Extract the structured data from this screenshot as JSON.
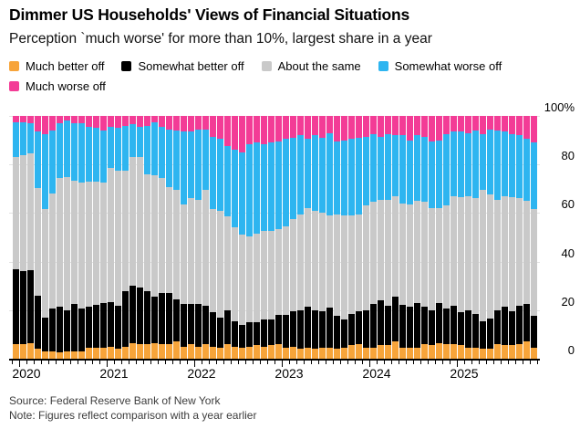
{
  "title": "Dimmer US Households' Views of Financial Situations",
  "subtitle": "Perception `much worse' for more than 10%, largest share in a year",
  "source_line": "Source: Federal Reserve Bank of New York",
  "note_line": "Note: Figures reflect comparison with a year earlier",
  "colors": {
    "background": "#ffffff",
    "gridline": "#e3e3e3",
    "axis": "#000000",
    "much_better": "#f7a43a",
    "somewhat_better": "#000000",
    "about_same": "#c9c9c9",
    "somewhat_worse": "#2eb5f0",
    "much_worse": "#f33c96"
  },
  "chart_data": {
    "type": "bar",
    "stacked": true,
    "unit": "percent",
    "ylim": [
      0,
      100
    ],
    "grid": "horizontal",
    "legend_position": "top",
    "bar_count": 72,
    "frequency": "monthly",
    "y_ticks": [
      {
        "label": "100%",
        "value": 100
      },
      {
        "label": "80",
        "value": 80
      },
      {
        "label": "60",
        "value": 60
      },
      {
        "label": "40",
        "value": 40
      },
      {
        "label": "20",
        "value": 20
      },
      {
        "label": "0",
        "value": 0
      }
    ],
    "x_tick_labels": [
      "2020",
      "2021",
      "2022",
      "2023",
      "2024",
      "2025"
    ],
    "year_start_indices": [
      1,
      13,
      25,
      37,
      49,
      61
    ],
    "series": [
      {
        "name": "Much better off",
        "color": "#f7a43a",
        "values": [
          6,
          6,
          6.5,
          4,
          3,
          3,
          2.5,
          3,
          3,
          3,
          4.5,
          4.5,
          4.5,
          5,
          4,
          5,
          6.5,
          6,
          6,
          6.5,
          6,
          6,
          7,
          5,
          6,
          5,
          6,
          5,
          4.5,
          6,
          5,
          4.5,
          5,
          5.5,
          5,
          5.5,
          6,
          4.5,
          5,
          4,
          4.5,
          4,
          4.5,
          4.5,
          4,
          4.5,
          5.5,
          6,
          4.5,
          4.5,
          5.5,
          5.5,
          7,
          4.5,
          4.5,
          4.5,
          6,
          5.5,
          6.5,
          6,
          6,
          5.5,
          4.5,
          4.5,
          4,
          4,
          6,
          5.5,
          5.5,
          6,
          7,
          4.5
        ]
      },
      {
        "name": "Somewhat better off",
        "color": "#000000",
        "values": [
          31,
          30,
          30,
          22,
          14,
          17.5,
          19,
          17,
          19.5,
          17.5,
          17,
          17.5,
          18.5,
          18.5,
          18,
          23,
          23.5,
          23.5,
          22,
          19,
          21,
          21,
          17.5,
          17.5,
          16.5,
          17.5,
          16,
          14,
          12.5,
          14,
          10.5,
          9.5,
          10,
          9.5,
          11,
          10.5,
          12,
          13.5,
          14.5,
          16,
          17,
          16,
          15,
          16.5,
          13.5,
          11.5,
          13,
          13.5,
          15.5,
          18,
          18.5,
          16.5,
          18.5,
          17.5,
          17,
          18.5,
          15.5,
          14.5,
          16.5,
          14.5,
          16,
          13.5,
          15.5,
          14,
          11.5,
          12.5,
          14,
          16,
          14,
          16,
          15.5,
          13
        ]
      },
      {
        "name": "About the same",
        "color": "#c9c9c9",
        "values": [
          46,
          48,
          48,
          44.5,
          44.5,
          47.5,
          53,
          55,
          51,
          52,
          51.5,
          51,
          49.5,
          55,
          55.5,
          49.5,
          53,
          53.5,
          48,
          50,
          47.5,
          43.5,
          45,
          41,
          43.5,
          43,
          47.5,
          42.5,
          44,
          38.5,
          38.5,
          37,
          35.5,
          36.5,
          36.5,
          36.5,
          35.5,
          36.5,
          38,
          39.5,
          40.5,
          41,
          40.5,
          38,
          42,
          43,
          40.5,
          40,
          43,
          42,
          41.5,
          43.5,
          41.5,
          42,
          42,
          42,
          43,
          42,
          39,
          42.5,
          45,
          47.5,
          47,
          47.5,
          54,
          51,
          45.5,
          45.5,
          47,
          44,
          42.5,
          44
        ]
      },
      {
        "name": "Somewhat worse off",
        "color": "#2eb5f0",
        "values": [
          14.5,
          13.5,
          12.5,
          23,
          31,
          26,
          22.5,
          23,
          23.5,
          24.5,
          22.5,
          22,
          21.5,
          17,
          17.5,
          18.5,
          13.5,
          12.5,
          20,
          22,
          21,
          24,
          24.5,
          30,
          27.5,
          29,
          25,
          30,
          29.5,
          29,
          32,
          34,
          38,
          37.5,
          36,
          36.5,
          36,
          36,
          33.5,
          32.5,
          28.5,
          31,
          31,
          34,
          30,
          31,
          31.5,
          31.5,
          28.5,
          28,
          26,
          27,
          25,
          28,
          26.5,
          27,
          27,
          27.5,
          28,
          29.5,
          26.5,
          27,
          26,
          28,
          23,
          27,
          28.5,
          26.5,
          26,
          26,
          25.5,
          27.5
        ]
      },
      {
        "name": "Much worse off",
        "color": "#f33c96",
        "values": [
          2.5,
          2.5,
          3,
          6.5,
          7.5,
          6,
          3,
          2,
          3,
          3,
          4.5,
          5,
          6,
          4.5,
          5,
          4,
          3.5,
          4.5,
          4,
          2.5,
          4.5,
          5.5,
          6,
          6.5,
          6.5,
          5.5,
          5.5,
          8.5,
          9.5,
          12.5,
          14,
          15,
          11.5,
          11,
          11.5,
          11,
          10.5,
          9.5,
          9,
          8,
          9.5,
          8,
          9,
          7,
          10.5,
          10,
          9.5,
          9,
          8.5,
          7.5,
          8.5,
          7.5,
          8,
          8,
          10,
          8,
          8.5,
          10.5,
          10,
          7.5,
          6.5,
          6.5,
          7,
          6,
          7.5,
          5.5,
          6,
          6.5,
          7.5,
          8,
          9.5,
          11
        ]
      }
    ]
  }
}
